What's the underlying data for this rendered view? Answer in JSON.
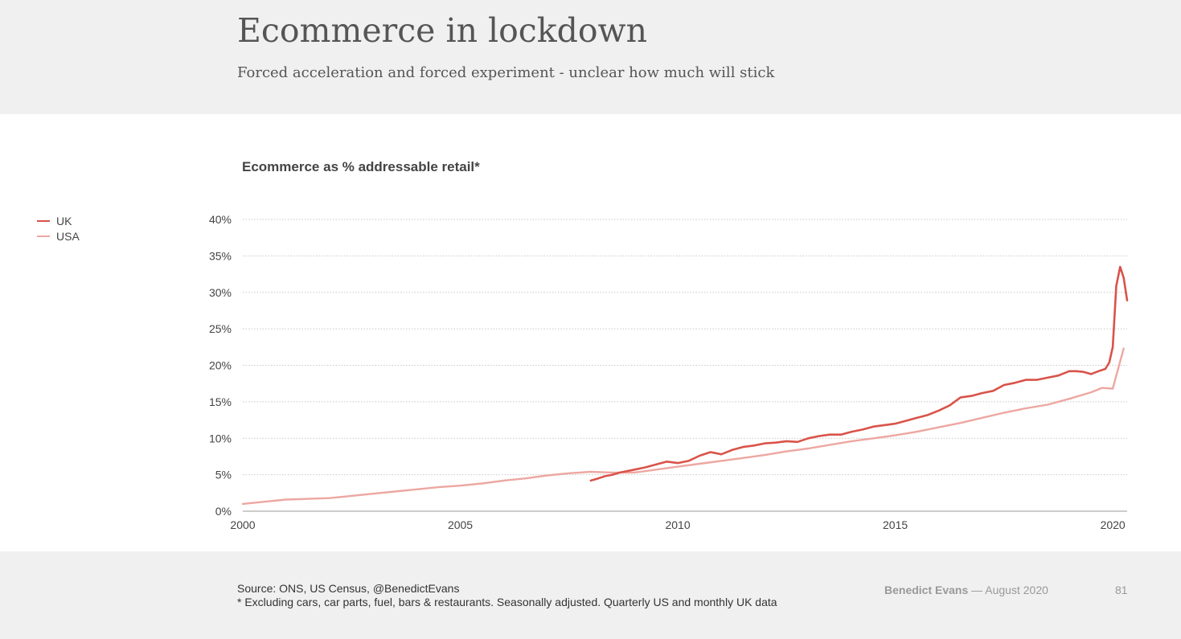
{
  "slide": {
    "title": "Ecommerce in lockdown",
    "subtitle": "Forced acceleration and forced experiment - unclear how much will stick",
    "source": "Source: ONS, US Census, @BenedictEvans",
    "footnote": "* Excluding cars, car parts, fuel, bars & restaurants. Seasonally adjusted. Quarterly US and monthly UK data",
    "author": "Benedict Evans",
    "date": "— August 2020",
    "page_number": "81"
  },
  "chart_data": {
    "type": "line",
    "title": "Ecommerce as % addressable retail*",
    "xlabel": "",
    "ylabel": "",
    "xlim": [
      2000.0,
      2020.33
    ],
    "ylim": [
      0,
      40
    ],
    "x_ticks": [
      2000,
      2005,
      2010,
      2015,
      2020
    ],
    "x_tick_labels": [
      "2000",
      "2005",
      "2010",
      "2015",
      "2020"
    ],
    "y_ticks": [
      0,
      5,
      10,
      15,
      20,
      25,
      30,
      35,
      40
    ],
    "y_tick_labels": [
      "0%",
      "5%",
      "10%",
      "15%",
      "20%",
      "25%",
      "30%",
      "35%",
      "40%"
    ],
    "grid": true,
    "legend_position": "left",
    "series": [
      {
        "name": "UK",
        "color": "#d9534a",
        "x": [
          2008.0,
          2008.17,
          2008.33,
          2008.5,
          2008.67,
          2008.83,
          2009.0,
          2009.25,
          2009.5,
          2009.75,
          2010.0,
          2010.25,
          2010.5,
          2010.75,
          2011.0,
          2011.25,
          2011.5,
          2011.75,
          2012.0,
          2012.25,
          2012.5,
          2012.75,
          2013.0,
          2013.25,
          2013.5,
          2013.75,
          2014.0,
          2014.25,
          2014.5,
          2014.75,
          2015.0,
          2015.25,
          2015.5,
          2015.75,
          2016.0,
          2016.25,
          2016.5,
          2016.75,
          2017.0,
          2017.25,
          2017.5,
          2017.75,
          2018.0,
          2018.25,
          2018.5,
          2018.75,
          2019.0,
          2019.17,
          2019.33,
          2019.5,
          2019.67,
          2019.83,
          2019.92,
          2020.0,
          2020.08,
          2020.17,
          2020.25,
          2020.33
        ],
        "y": [
          4.2,
          4.5,
          4.8,
          5.0,
          5.3,
          5.5,
          5.7,
          6.0,
          6.4,
          6.8,
          6.6,
          6.9,
          7.6,
          8.1,
          7.8,
          8.4,
          8.8,
          9.0,
          9.3,
          9.4,
          9.6,
          9.5,
          10.0,
          10.3,
          10.5,
          10.5,
          10.9,
          11.2,
          11.6,
          11.8,
          12.0,
          12.4,
          12.8,
          13.2,
          13.8,
          14.5,
          15.6,
          15.8,
          16.2,
          16.5,
          17.3,
          17.6,
          18.0,
          18.0,
          18.3,
          18.6,
          19.2,
          19.2,
          19.1,
          18.8,
          19.2,
          19.5,
          20.4,
          22.5,
          30.9,
          33.5,
          32.0,
          28.9
        ]
      },
      {
        "name": "USA",
        "color": "#eda7a1",
        "x": [
          2000.0,
          2000.5,
          2001.0,
          2001.5,
          2002.0,
          2002.5,
          2003.0,
          2003.5,
          2004.0,
          2004.5,
          2005.0,
          2005.5,
          2006.0,
          2006.5,
          2007.0,
          2007.5,
          2008.0,
          2008.5,
          2009.0,
          2009.5,
          2010.0,
          2010.5,
          2011.0,
          2011.5,
          2012.0,
          2012.5,
          2013.0,
          2013.5,
          2014.0,
          2014.5,
          2015.0,
          2015.5,
          2016.0,
          2016.5,
          2017.0,
          2017.5,
          2018.0,
          2018.5,
          2019.0,
          2019.5,
          2019.75,
          2020.0,
          2020.25
        ],
        "y": [
          1.0,
          1.3,
          1.6,
          1.7,
          1.8,
          2.1,
          2.4,
          2.7,
          3.0,
          3.3,
          3.5,
          3.8,
          4.2,
          4.5,
          4.9,
          5.2,
          5.4,
          5.3,
          5.3,
          5.7,
          6.1,
          6.5,
          6.9,
          7.3,
          7.7,
          8.2,
          8.6,
          9.1,
          9.6,
          10.0,
          10.4,
          10.9,
          11.5,
          12.1,
          12.8,
          13.5,
          14.1,
          14.6,
          15.4,
          16.3,
          16.9,
          16.8,
          22.3
        ]
      }
    ]
  }
}
